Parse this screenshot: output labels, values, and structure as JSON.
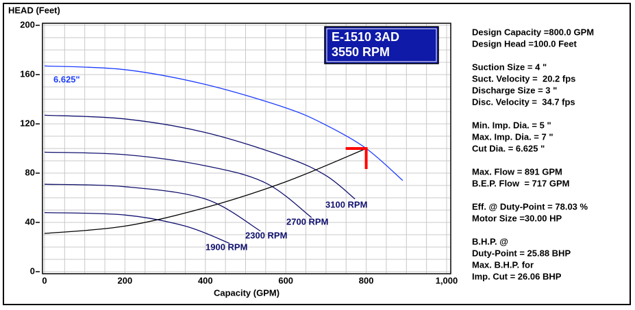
{
  "chart_data": {
    "type": "line",
    "x_label": "Capacity (GPM)",
    "y_label": "HEAD (Feet)",
    "xlim": [
      0,
      1000
    ],
    "ylim": [
      0,
      200
    ],
    "xticks": [
      0,
      200,
      400,
      600,
      800,
      {
        "value": 1000,
        "label": "1,000"
      }
    ],
    "yticks": [
      0,
      40,
      80,
      120,
      160,
      200
    ],
    "grid": true,
    "title": [
      "E-1510 3AD",
      "3550 RPM"
    ],
    "series": [
      {
        "name": "6.625\"",
        "color": "#1c3cff",
        "x": [
          0,
          200,
          400,
          600,
          700,
          800,
          891
        ],
        "values": [
          167,
          164,
          152,
          133,
          119,
          100,
          74
        ]
      },
      {
        "name": "3100 RPM",
        "color": "#10106e",
        "x": [
          0,
          200,
          400,
          600,
          700,
          772
        ],
        "values": [
          127,
          124,
          113,
          93,
          78,
          59
        ]
      },
      {
        "name": "2700 RPM",
        "color": "#10106e",
        "x": [
          0,
          200,
          400,
          550,
          664
        ],
        "values": [
          97,
          95,
          86,
          72,
          44
        ]
      },
      {
        "name": "2300 RPM",
        "color": "#10106e",
        "x": [
          0,
          200,
          400,
          537
        ],
        "values": [
          71,
          69,
          59,
          33
        ]
      },
      {
        "name": "1900 RPM",
        "color": "#10106e",
        "x": [
          0,
          200,
          350,
          460
        ],
        "values": [
          48,
          46,
          37,
          23
        ]
      },
      {
        "color": "#000000",
        "x": [
          0,
          200,
          400,
          600,
          800
        ],
        "values": [
          31,
          37,
          52,
          73,
          100
        ]
      }
    ],
    "duty_point": {
      "x": 800,
      "y": 100,
      "color": "#ff0000"
    }
  },
  "info_panel": {
    "groups": [
      [
        "Design Capacity =800.0 GPM",
        "Design Head =100.0 Feet"
      ],
      [
        "Suction Size = 4 \"",
        "Suct. Velocity =  20.2 fps",
        "Discharge Size = 3 \"",
        "Disc. Velocity =  34.7 fps"
      ],
      [
        "Min. Imp. Dia. = 5 \"",
        "Max. Imp. Dia. = 7 \"",
        "Cut Dia. = 6.625 \""
      ],
      [
        "Max. Flow = 891 GPM",
        "B.E.P. Flow  = 717 GPM"
      ],
      [
        "Eff. @ Duty-Point = 78.03 %",
        "Motor Size =30.00 HP"
      ],
      [
        "B.H.P. @",
        "Duty-Point = 25.88 BHP",
        "Max. B.H.P. for",
        "Imp. Cut = 26.06 BHP"
      ]
    ]
  }
}
